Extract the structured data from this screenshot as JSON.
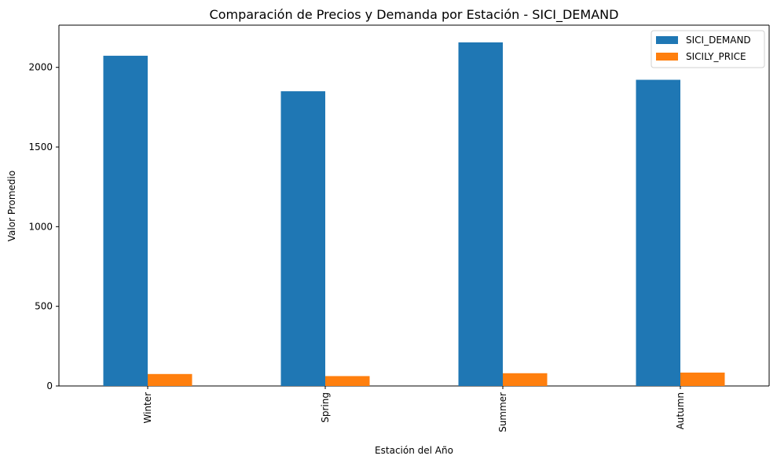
{
  "chart_data": {
    "type": "bar",
    "title": "Comparación de Precios y Demanda por Estación - SICI_DEMAND",
    "xlabel": "Estación del Año",
    "ylabel": "Valor Promedio",
    "categories": [
      "Winter",
      "Spring",
      "Summer",
      "Autumn"
    ],
    "series": [
      {
        "name": "SICI_DEMAND",
        "color": "#1f77b4",
        "values": [
          2073,
          1850,
          2157,
          1922
        ]
      },
      {
        "name": "SICILY_PRICE",
        "color": "#ff7f0e",
        "values": [
          75,
          62,
          80,
          84
        ]
      }
    ],
    "ylim": [
      0,
      2265
    ],
    "yticks": [
      0,
      500,
      1000,
      1500,
      2000
    ],
    "grid": false,
    "legend_position": "top-right"
  }
}
